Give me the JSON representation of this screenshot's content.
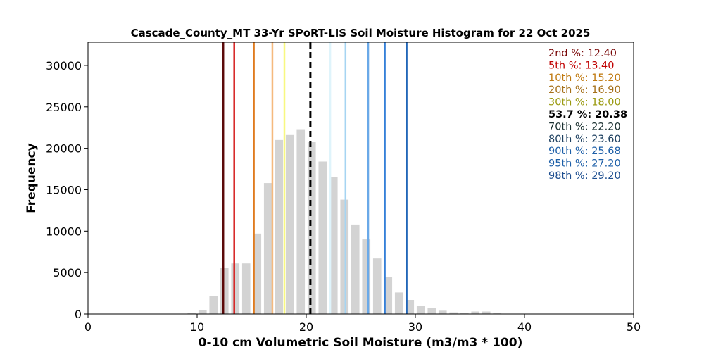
{
  "chart_data": {
    "type": "bar",
    "title": "Cascade_County_MT 33-Yr SPoRT-LIS Soil Moisture Histogram for 22 Oct 2025",
    "xlabel": "0-10 cm Volumetric Soil Moisture (m3/m3 * 100)",
    "ylabel": "Frequency",
    "xlim": [
      0,
      50
    ],
    "ylim": [
      0,
      32800
    ],
    "xticks": [
      "0",
      "10",
      "20",
      "30",
      "40",
      "50"
    ],
    "yticks": [
      "0",
      "5000",
      "10000",
      "15000",
      "20000",
      "25000",
      "30000"
    ],
    "bar_color": "#d3d3d3",
    "bin_width": 1,
    "bins": [
      {
        "x": 9.5,
        "value": 150
      },
      {
        "x": 10.5,
        "value": 500
      },
      {
        "x": 11.5,
        "value": 2200
      },
      {
        "x": 12.5,
        "value": 5600
      },
      {
        "x": 13.5,
        "value": 6100
      },
      {
        "x": 14.5,
        "value": 6100
      },
      {
        "x": 15.5,
        "value": 9700
      },
      {
        "x": 16.5,
        "value": 15800
      },
      {
        "x": 17.5,
        "value": 21000
      },
      {
        "x": 18.5,
        "value": 21600
      },
      {
        "x": 19.5,
        "value": 22300
      },
      {
        "x": 20.5,
        "value": 20800
      },
      {
        "x": 21.5,
        "value": 18400
      },
      {
        "x": 22.5,
        "value": 16500
      },
      {
        "x": 23.5,
        "value": 13800
      },
      {
        "x": 24.5,
        "value": 10800
      },
      {
        "x": 25.5,
        "value": 9000
      },
      {
        "x": 26.5,
        "value": 6700
      },
      {
        "x": 27.5,
        "value": 4500
      },
      {
        "x": 28.5,
        "value": 2600
      },
      {
        "x": 29.5,
        "value": 1700
      },
      {
        "x": 30.5,
        "value": 1000
      },
      {
        "x": 31.5,
        "value": 700
      },
      {
        "x": 32.5,
        "value": 400
      },
      {
        "x": 33.5,
        "value": 200
      },
      {
        "x": 34.5,
        "value": 100
      },
      {
        "x": 35.5,
        "value": 300
      },
      {
        "x": 36.5,
        "value": 300
      },
      {
        "x": 37.5,
        "value": 80
      }
    ],
    "percentile_lines": [
      {
        "label": "2nd %: 12.40",
        "value": 12.4,
        "color": "#5c0a0a",
        "dashed": false
      },
      {
        "label": "5th %: 13.40",
        "value": 13.4,
        "color": "#d62020",
        "dashed": false
      },
      {
        "label": "10th %: 15.20",
        "value": 15.2,
        "color": "#e07b1f",
        "dashed": false
      },
      {
        "label": "20th %: 16.90",
        "value": 16.9,
        "color": "#f5b97d",
        "dashed": false
      },
      {
        "label": "30th %: 18.00",
        "value": 18.0,
        "color": "#f8f880",
        "dashed": false
      },
      {
        "label": "53.7 %: 20.38",
        "value": 20.38,
        "color": "#000000",
        "dashed": true
      },
      {
        "label": "70th %: 22.20",
        "value": 22.2,
        "color": "#dff4fb",
        "dashed": false
      },
      {
        "label": "80th %: 23.60",
        "value": 23.6,
        "color": "#a6d4f2",
        "dashed": false
      },
      {
        "label": "90th %: 25.68",
        "value": 25.68,
        "color": "#6aa9e8",
        "dashed": false
      },
      {
        "label": "95th %: 27.20",
        "value": 27.2,
        "color": "#3580d8",
        "dashed": false
      },
      {
        "label": "98th %: 29.20",
        "value": 29.2,
        "color": "#2166b8",
        "dashed": false
      }
    ],
    "legend_placement": "top-right",
    "legend_text_colors": [
      "#7a0a0a",
      "#c00000",
      "#c07a10",
      "#a5701a",
      "#9a9a10",
      "#000000",
      "#1a3030",
      "#1e4060",
      "#1d5fa8",
      "#1d5fa8",
      "#1d4e90"
    ],
    "grid": false
  }
}
